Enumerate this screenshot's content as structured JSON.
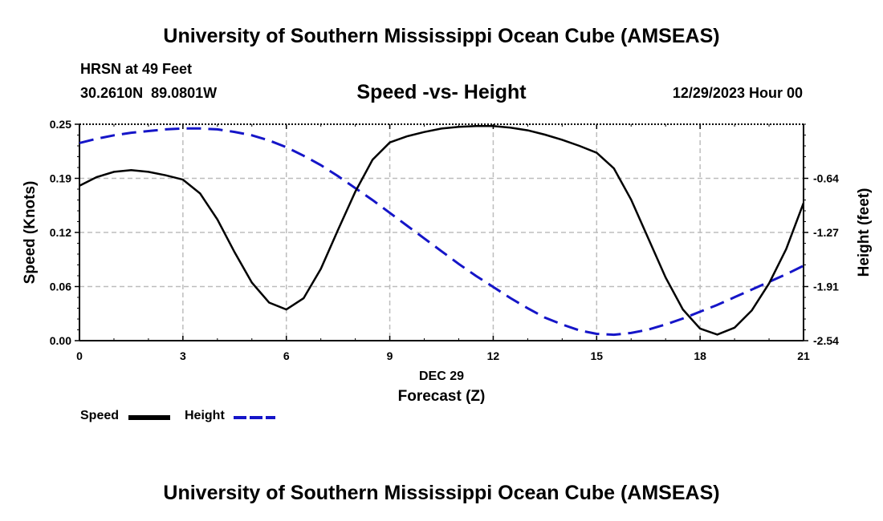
{
  "title_top": "University of Southern Mississippi Ocean Cube (AMSEAS)",
  "title_bottom": "University of Southern Mississippi Ocean Cube (AMSEAS)",
  "station": "HRSN at 49 Feet",
  "coords": "30.2610N  89.0801W",
  "datetime": "12/29/2023 Hour 00",
  "colors": {
    "speed": "#000000",
    "height": "#1515c8",
    "grid": "#bdbdbd"
  },
  "chart_data": {
    "type": "line",
    "title": "Speed -vs- Height",
    "xlabel": "Forecast (Z)",
    "xdate_label": "DEC 29",
    "ylabel_left": "Speed (Knots)",
    "ylabel_right": "Height (feet)",
    "xlim": [
      0,
      21
    ],
    "ylim_left": [
      0,
      0.25
    ],
    "ylim_right": [
      -2.54,
      0.0
    ],
    "x_ticks": [
      0,
      3,
      6,
      9,
      12,
      15,
      18,
      21
    ],
    "x_tick_labels": [
      "0",
      "3",
      "6",
      "9",
      "12",
      "15",
      "18",
      "21"
    ],
    "y_left_ticks": [
      0,
      0.0625,
      0.125,
      0.1875,
      0.25
    ],
    "y_left_tick_labels": [
      "0.00",
      "0.06",
      "0.12",
      "0.19",
      "0.25"
    ],
    "y_right_ticks": [
      -2.54,
      -1.905,
      -1.27,
      -0.635
    ],
    "y_right_tick_labels": [
      "-2.54",
      "-1.91",
      "-1.27",
      "-0.64"
    ],
    "grid": true,
    "series": [
      {
        "name": "Speed",
        "axis": "left",
        "style": "solid",
        "x": [
          0,
          0.5,
          1,
          1.5,
          2,
          2.5,
          3,
          3.5,
          4,
          4.5,
          5,
          5.5,
          6,
          6.5,
          7,
          7.5,
          8,
          8.5,
          9,
          9.5,
          10,
          10.5,
          11,
          11.5,
          12,
          12.5,
          13,
          13.5,
          14,
          14.5,
          15,
          15.5,
          16,
          16.5,
          17,
          17.5,
          18,
          18.5,
          19,
          19.5,
          20,
          20.5,
          21
        ],
        "values": [
          0.179,
          0.189,
          0.195,
          0.197,
          0.195,
          0.191,
          0.186,
          0.17,
          0.14,
          0.102,
          0.067,
          0.044,
          0.036,
          0.049,
          0.083,
          0.128,
          0.172,
          0.209,
          0.229,
          0.236,
          0.241,
          0.245,
          0.247,
          0.248,
          0.248,
          0.246,
          0.243,
          0.238,
          0.232,
          0.225,
          0.217,
          0.199,
          0.163,
          0.118,
          0.073,
          0.036,
          0.014,
          0.007,
          0.015,
          0.035,
          0.066,
          0.106,
          0.159
        ]
      },
      {
        "name": "Height",
        "axis": "right",
        "style": "dashed",
        "x": [
          0,
          0.5,
          1,
          1.5,
          2,
          2.5,
          3,
          3.5,
          4,
          4.5,
          5,
          5.5,
          6,
          6.5,
          7,
          7.5,
          8,
          8.5,
          9,
          9.5,
          10,
          10.5,
          11,
          11.5,
          12,
          12.5,
          13,
          13.5,
          14,
          14.5,
          15,
          15.5,
          16,
          16.5,
          17,
          17.5,
          18,
          18.5,
          19,
          19.5,
          20,
          20.5,
          21
        ],
        "values": [
          -0.22,
          -0.17,
          -0.13,
          -0.1,
          -0.08,
          -0.06,
          -0.05,
          -0.05,
          -0.06,
          -0.09,
          -0.13,
          -0.19,
          -0.27,
          -0.37,
          -0.48,
          -0.61,
          -0.75,
          -0.89,
          -1.04,
          -1.19,
          -1.34,
          -1.49,
          -1.64,
          -1.78,
          -1.91,
          -2.04,
          -2.16,
          -2.27,
          -2.35,
          -2.42,
          -2.46,
          -2.47,
          -2.45,
          -2.41,
          -2.35,
          -2.28,
          -2.2,
          -2.12,
          -2.03,
          -1.94,
          -1.85,
          -1.76,
          -1.66
        ]
      }
    ]
  },
  "legend": {
    "speed_label": "Speed",
    "height_label": "Height"
  }
}
